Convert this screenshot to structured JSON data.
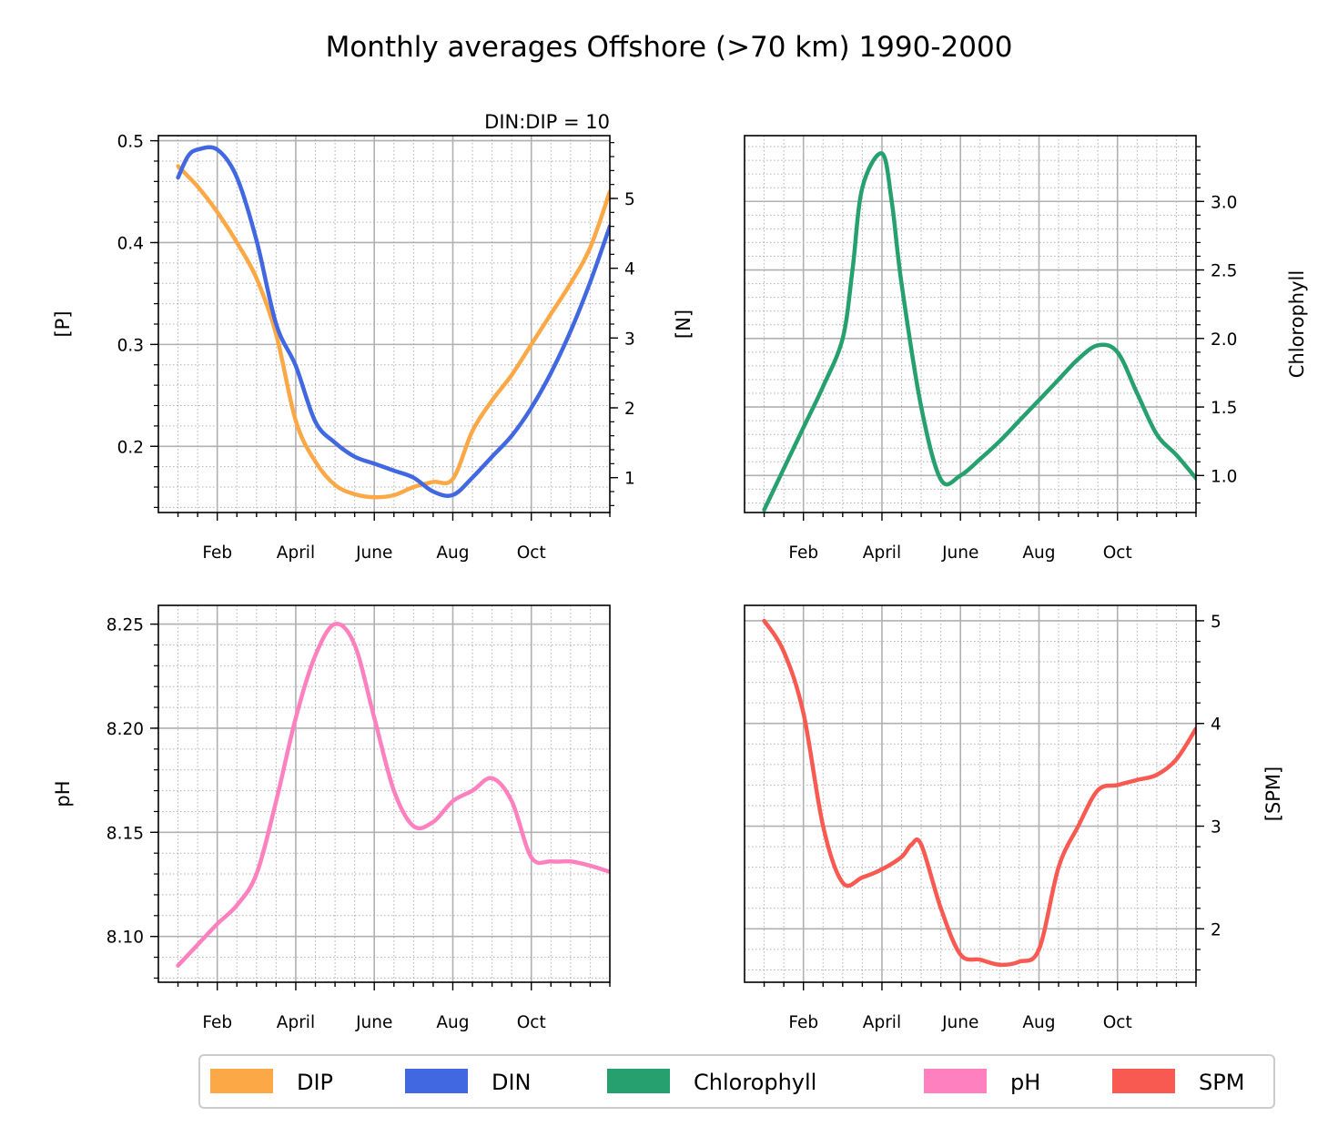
{
  "title": "Monthly averages Offshore (>70 km) 1990-2000",
  "legend": [
    {
      "label": "DIP",
      "color": "#FCA846"
    },
    {
      "label": "DIN",
      "color": "#4168E0"
    },
    {
      "label": "Chlorophyll",
      "color": "#26A06E"
    },
    {
      "label": "pH",
      "color": "#FF80BF"
    },
    {
      "label": "SPM",
      "color": "#F85A52"
    }
  ],
  "chart_data": [
    {
      "type": "line",
      "panel": "top-left",
      "annotation": "DIN:DIP = 10",
      "x_ticks": [
        "Feb",
        "April",
        "June",
        "Aug",
        "Oct"
      ],
      "ylabel_left": "[P]",
      "ylabel_right": "[N]",
      "ylim_left": [
        0.135,
        0.505
      ],
      "ylim_right": [
        0.5,
        5.9
      ],
      "yticks_left": [
        "0.2",
        "0.3",
        "0.4",
        "0.5"
      ],
      "yticks_right": [
        "1",
        "2",
        "3",
        "4",
        "5"
      ],
      "series": [
        {
          "name": "DIP",
          "axis": "left",
          "color": "#FCA846",
          "x": [
            1,
            1.5,
            2,
            2.5,
            3,
            3.5,
            4,
            4.5,
            5,
            5.5,
            6,
            6.5,
            7,
            7.5,
            8,
            8.5,
            9,
            9.5,
            10,
            10.5,
            11,
            11.5,
            12
          ],
          "values": [
            0.475,
            0.455,
            0.43,
            0.4,
            0.365,
            0.31,
            0.225,
            0.185,
            0.162,
            0.153,
            0.15,
            0.152,
            0.16,
            0.165,
            0.168,
            0.215,
            0.245,
            0.27,
            0.3,
            0.33,
            0.36,
            0.395,
            0.45
          ]
        },
        {
          "name": "DIN",
          "axis": "right",
          "color": "#4168E0",
          "x": [
            1,
            1.25,
            1.5,
            2,
            2.5,
            3,
            3.5,
            4,
            4.5,
            5,
            5.5,
            6,
            6.5,
            7,
            7.5,
            8,
            8.5,
            9,
            9.5,
            10,
            10.5,
            11,
            11.5,
            12
          ],
          "values": [
            5.3,
            5.6,
            5.7,
            5.7,
            5.3,
            4.4,
            3.2,
            2.6,
            1.8,
            1.5,
            1.3,
            1.2,
            1.1,
            1.0,
            0.8,
            0.75,
            1.0,
            1.3,
            1.6,
            2.0,
            2.5,
            3.1,
            3.8,
            4.6
          ]
        }
      ]
    },
    {
      "type": "line",
      "panel": "top-right",
      "x_ticks": [
        "Feb",
        "April",
        "June",
        "Aug",
        "Oct"
      ],
      "ylabel_right": "Chlorophyll",
      "ylim_right": [
        0.73,
        3.48
      ],
      "yticks_right": [
        "1.0",
        "1.5",
        "2.0",
        "2.5",
        "3.0"
      ],
      "series": [
        {
          "name": "Chlorophyll",
          "axis": "right",
          "color": "#26A06E",
          "x": [
            1,
            1.5,
            2,
            2.5,
            3,
            3.25,
            3.5,
            4,
            4.25,
            4.5,
            5,
            5.5,
            6,
            6.5,
            7,
            7.5,
            8,
            8.5,
            9,
            9.5,
            10,
            10.5,
            11,
            11.5,
            12
          ],
          "values": [
            0.75,
            1.05,
            1.35,
            1.65,
            2.0,
            2.5,
            3.1,
            3.35,
            3.0,
            2.4,
            1.5,
            0.97,
            1.0,
            1.12,
            1.25,
            1.4,
            1.55,
            1.7,
            1.85,
            1.95,
            1.9,
            1.6,
            1.3,
            1.15,
            0.98
          ]
        }
      ]
    },
    {
      "type": "line",
      "panel": "bottom-left",
      "x_ticks": [
        "Feb",
        "April",
        "June",
        "Aug",
        "Oct"
      ],
      "ylabel_left": "pH",
      "ylim_left": [
        8.078,
        8.259
      ],
      "yticks_left": [
        "8.10",
        "8.15",
        "8.20",
        "8.25"
      ],
      "series": [
        {
          "name": "pH",
          "axis": "left",
          "color": "#FF80BF",
          "x": [
            1,
            1.5,
            2,
            2.5,
            3,
            3.5,
            4,
            4.5,
            5,
            5.5,
            6,
            6.5,
            7,
            7.5,
            8,
            8.5,
            9,
            9.5,
            10,
            10.5,
            11,
            11.5,
            12
          ],
          "values": [
            8.086,
            8.096,
            8.106,
            8.115,
            8.13,
            8.165,
            8.205,
            8.235,
            8.25,
            8.24,
            8.205,
            8.17,
            8.153,
            8.155,
            8.165,
            8.17,
            8.176,
            8.165,
            8.138,
            8.136,
            8.136,
            8.134,
            8.131
          ]
        }
      ]
    },
    {
      "type": "line",
      "panel": "bottom-right",
      "x_ticks": [
        "Feb",
        "April",
        "June",
        "Aug",
        "Oct"
      ],
      "ylabel_right": "[SPM]",
      "ylim_right": [
        1.48,
        5.15
      ],
      "yticks_right": [
        "2",
        "3",
        "4",
        "5"
      ],
      "series": [
        {
          "name": "SPM",
          "axis": "right",
          "color": "#F85A52",
          "x": [
            1,
            1.5,
            2,
            2.5,
            3,
            3.5,
            4,
            4.5,
            4.75,
            5,
            5.5,
            6,
            6.5,
            7,
            7.5,
            8,
            8.5,
            9,
            9.5,
            10,
            10.5,
            11,
            11.5,
            12
          ],
          "values": [
            5.0,
            4.7,
            4.1,
            3.0,
            2.45,
            2.5,
            2.58,
            2.7,
            2.82,
            2.82,
            2.2,
            1.75,
            1.7,
            1.65,
            1.68,
            1.8,
            2.6,
            3.0,
            3.35,
            3.4,
            3.45,
            3.5,
            3.65,
            3.95
          ]
        }
      ]
    }
  ]
}
